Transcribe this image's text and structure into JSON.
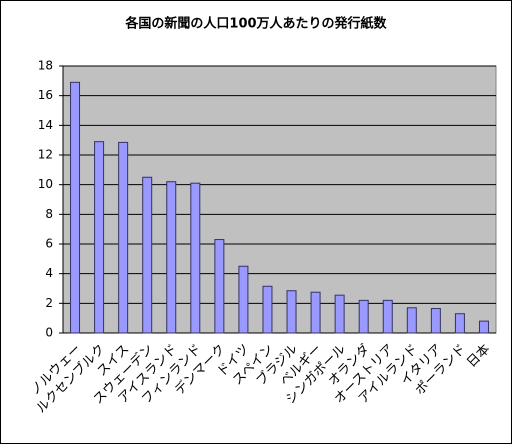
{
  "chart_data": {
    "type": "bar",
    "title": "各国の新聞の人口100万人あたりの発行紙数",
    "categories": [
      "ノルウェー",
      "ルクセンブルク",
      "スイス",
      "スウェーデン",
      "アイスランド",
      "フィンランド",
      "デンマーク",
      "ドイツ",
      "スペイン",
      "ブラジル",
      "ベルギー",
      "シンガポール",
      "オランダ",
      "オーストリア",
      "アイルランド",
      "イタリア",
      "ポーランド",
      "日本"
    ],
    "values": [
      16.9,
      12.9,
      12.85,
      10.5,
      10.2,
      10.1,
      6.3,
      4.5,
      3.15,
      2.85,
      2.75,
      2.55,
      2.2,
      2.2,
      1.7,
      1.65,
      1.3,
      0.8
    ],
    "color": "#9999ff",
    "ylim": [
      0,
      18
    ],
    "yticks": [
      0,
      2,
      4,
      6,
      8,
      10,
      12,
      14,
      16,
      18
    ],
    "grid": true
  }
}
